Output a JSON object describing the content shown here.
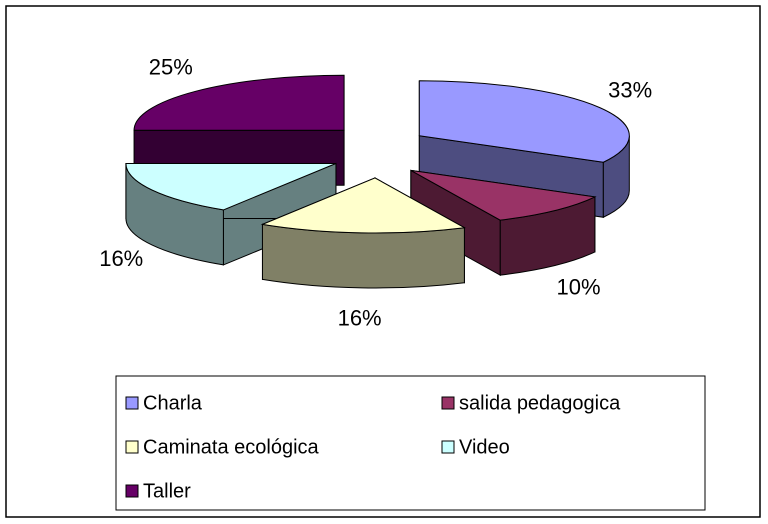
{
  "chart_data": {
    "type": "pie3d",
    "categories": [
      "Charla",
      "salida pedagogica",
      "Caminata ecológica",
      "Video",
      "Taller"
    ],
    "values": [
      33,
      10,
      16,
      16,
      25
    ],
    "value_labels": [
      "33%",
      "10%",
      "16%",
      "16%",
      "25%"
    ],
    "colors": [
      "#9999ff",
      "#993366",
      "#ffffcc",
      "#ccffff",
      "#660066"
    ],
    "legend": "bottom"
  }
}
